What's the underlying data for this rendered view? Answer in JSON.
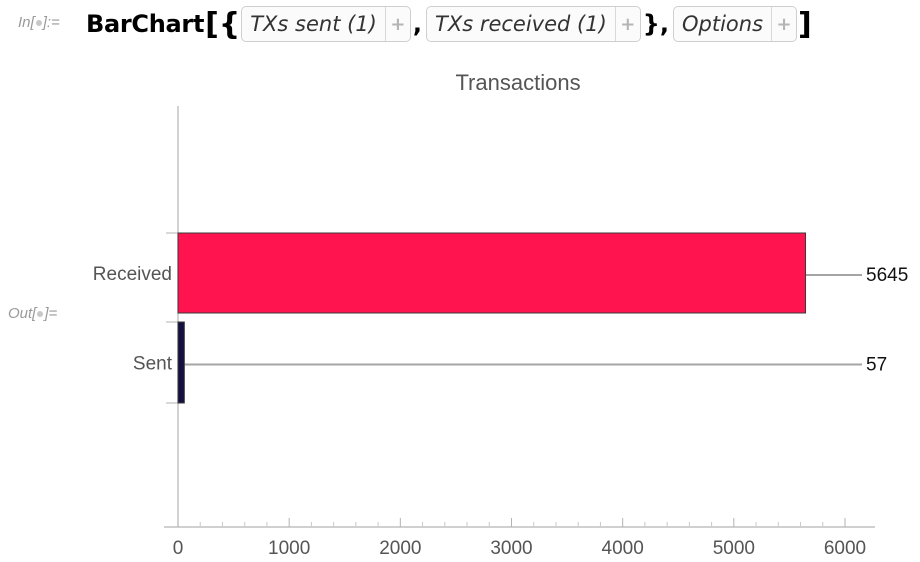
{
  "notebook": {
    "in_label": "In[",
    "in_label_end": "]:=",
    "out_label": "Out[",
    "out_label_end": "]=",
    "function_name": "BarChart",
    "args": [
      {
        "label": "TXs sent (1)",
        "plus": "+"
      },
      {
        "label": "TXs received (1)",
        "plus": "+"
      },
      {
        "label": "Options",
        "plus": "+"
      }
    ]
  },
  "chart_data": {
    "type": "bar",
    "orientation": "horizontal",
    "title": "Transactions",
    "categories": [
      "Sent",
      "Received"
    ],
    "values": [
      57,
      5645
    ],
    "value_labels": [
      "57",
      "5645"
    ],
    "colors": [
      "#12103f",
      "#ff1450"
    ],
    "xlim": [
      0,
      6200
    ],
    "x_ticks": [
      0,
      1000,
      2000,
      3000,
      4000,
      5000,
      6000
    ],
    "x_tick_labels": [
      "0",
      "1000",
      "2000",
      "3000",
      "4000",
      "5000",
      "6000"
    ],
    "grid": false
  }
}
